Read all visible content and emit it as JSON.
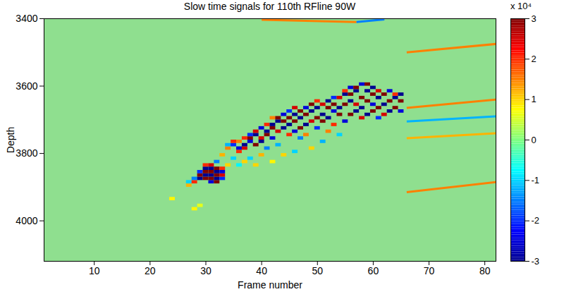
{
  "chart_data": {
    "type": "heatmap",
    "title": "Slow time signals for 110th RFline 90W",
    "x_label": "Frame number",
    "y_label": "Depth",
    "xlim": [
      1,
      82
    ],
    "xticks": [
      10,
      20,
      30,
      40,
      50,
      60,
      70,
      80
    ],
    "ylim": [
      3400,
      4120
    ],
    "yticks": [
      3400,
      3600,
      3800,
      4000
    ],
    "colorbar": {
      "label": "x 10⁴",
      "range": [
        -30000,
        30000
      ],
      "ticks": [
        {
          "value": -30000,
          "label": "-3"
        },
        {
          "value": -20000,
          "label": "-2"
        },
        {
          "value": -10000,
          "label": "-1"
        },
        {
          "value": 0,
          "label": "0"
        },
        {
          "value": 10000,
          "label": "1"
        },
        {
          "value": 20000,
          "label": "2"
        },
        {
          "value": 30000,
          "label": "3"
        }
      ]
    },
    "cell_width": 1,
    "cell_height": 10,
    "cells": [
      [
        24,
        3935,
        8000
      ],
      [
        27,
        3895,
        12000
      ],
      [
        27,
        3885,
        -10000
      ],
      [
        28,
        3885,
        20000
      ],
      [
        28,
        3875,
        -15000
      ],
      [
        28,
        3965,
        8000
      ],
      [
        29,
        3875,
        -30000
      ],
      [
        29,
        3865,
        30000
      ],
      [
        29,
        3855,
        -20000
      ],
      [
        29,
        3955,
        6000
      ],
      [
        30,
        3875,
        30000
      ],
      [
        30,
        3865,
        -30000
      ],
      [
        30,
        3855,
        30000
      ],
      [
        30,
        3845,
        -30000
      ],
      [
        30,
        3835,
        20000
      ],
      [
        31,
        3885,
        -25000
      ],
      [
        31,
        3875,
        30000
      ],
      [
        31,
        3865,
        -30000
      ],
      [
        31,
        3855,
        30000
      ],
      [
        31,
        3845,
        -30000
      ],
      [
        31,
        3835,
        25000
      ],
      [
        32,
        3885,
        30000
      ],
      [
        32,
        3875,
        -30000
      ],
      [
        32,
        3865,
        30000
      ],
      [
        32,
        3855,
        -30000
      ],
      [
        32,
        3845,
        30000
      ],
      [
        32,
        3825,
        -15000
      ],
      [
        33,
        3875,
        -20000
      ],
      [
        33,
        3865,
        25000
      ],
      [
        33,
        3855,
        -25000
      ],
      [
        33,
        3845,
        20000
      ],
      [
        33,
        3805,
        12000
      ],
      [
        34,
        3785,
        15000
      ],
      [
        34,
        3775,
        -12000
      ],
      [
        34,
        3835,
        10000
      ],
      [
        35,
        3775,
        -20000
      ],
      [
        35,
        3765,
        20000
      ],
      [
        35,
        3815,
        -10000
      ],
      [
        36,
        3795,
        20000
      ],
      [
        36,
        3785,
        -25000
      ],
      [
        36,
        3765,
        15000
      ],
      [
        36,
        3835,
        -8000
      ],
      [
        37,
        3785,
        25000
      ],
      [
        37,
        3775,
        -30000
      ],
      [
        37,
        3755,
        20000
      ],
      [
        37,
        3825,
        10000
      ],
      [
        38,
        3765,
        -25000
      ],
      [
        38,
        3755,
        30000
      ],
      [
        38,
        3745,
        -20000
      ],
      [
        38,
        3815,
        -10000
      ],
      [
        39,
        3775,
        30000
      ],
      [
        39,
        3745,
        -30000
      ],
      [
        39,
        3735,
        25000
      ],
      [
        39,
        3835,
        10000
      ],
      [
        40,
        3765,
        -30000
      ],
      [
        40,
        3755,
        25000
      ],
      [
        40,
        3725,
        -25000
      ],
      [
        40,
        3805,
        12000
      ],
      [
        41,
        3745,
        30000
      ],
      [
        41,
        3735,
        -30000
      ],
      [
        41,
        3715,
        20000
      ],
      [
        41,
        3785,
        -15000
      ],
      [
        42,
        3755,
        -25000
      ],
      [
        42,
        3725,
        30000
      ],
      [
        42,
        3715,
        -30000
      ],
      [
        42,
        3695,
        15000
      ],
      [
        42,
        3825,
        8000
      ],
      [
        43,
        3735,
        25000
      ],
      [
        43,
        3705,
        -30000
      ],
      [
        43,
        3695,
        30000
      ],
      [
        43,
        3775,
        -12000
      ],
      [
        44,
        3725,
        -30000
      ],
      [
        44,
        3705,
        30000
      ],
      [
        44,
        3685,
        -25000
      ],
      [
        44,
        3805,
        10000
      ],
      [
        45,
        3745,
        20000
      ],
      [
        45,
        3715,
        -30000
      ],
      [
        45,
        3695,
        30000
      ],
      [
        45,
        3675,
        -20000
      ],
      [
        46,
        3735,
        -25000
      ],
      [
        46,
        3705,
        30000
      ],
      [
        46,
        3685,
        -30000
      ],
      [
        46,
        3665,
        25000
      ],
      [
        46,
        3795,
        -10000
      ],
      [
        47,
        3725,
        30000
      ],
      [
        47,
        3695,
        -30000
      ],
      [
        47,
        3675,
        30000
      ],
      [
        47,
        3755,
        -15000
      ],
      [
        48,
        3715,
        -30000
      ],
      [
        48,
        3685,
        30000
      ],
      [
        48,
        3665,
        -25000
      ],
      [
        48,
        3745,
        15000
      ],
      [
        49,
        3705,
        25000
      ],
      [
        49,
        3675,
        -30000
      ],
      [
        49,
        3655,
        30000
      ],
      [
        49,
        3785,
        10000
      ],
      [
        50,
        3725,
        -20000
      ],
      [
        50,
        3695,
        30000
      ],
      [
        50,
        3665,
        -30000
      ],
      [
        50,
        3645,
        20000
      ],
      [
        51,
        3705,
        30000
      ],
      [
        51,
        3685,
        -30000
      ],
      [
        51,
        3655,
        25000
      ],
      [
        51,
        3765,
        -12000
      ],
      [
        52,
        3695,
        -30000
      ],
      [
        52,
        3665,
        30000
      ],
      [
        52,
        3645,
        -30000
      ],
      [
        52,
        3735,
        15000
      ],
      [
        53,
        3715,
        20000
      ],
      [
        53,
        3675,
        -25000
      ],
      [
        53,
        3655,
        30000
      ],
      [
        53,
        3635,
        -20000
      ],
      [
        54,
        3685,
        30000
      ],
      [
        54,
        3665,
        -30000
      ],
      [
        54,
        3635,
        25000
      ],
      [
        54,
        3745,
        -10000
      ],
      [
        55,
        3705,
        -25000
      ],
      [
        55,
        3655,
        30000
      ],
      [
        55,
        3625,
        -30000
      ],
      [
        55,
        3615,
        20000
      ],
      [
        56,
        3685,
        30000
      ],
      [
        56,
        3645,
        -30000
      ],
      [
        56,
        3625,
        30000
      ],
      [
        56,
        3605,
        -25000
      ],
      [
        57,
        3675,
        -30000
      ],
      [
        57,
        3655,
        25000
      ],
      [
        57,
        3615,
        -30000
      ],
      [
        57,
        3605,
        30000
      ],
      [
        58,
        3695,
        25000
      ],
      [
        58,
        3665,
        -30000
      ],
      [
        58,
        3635,
        30000
      ],
      [
        58,
        3595,
        -25000
      ],
      [
        59,
        3685,
        -30000
      ],
      [
        59,
        3645,
        30000
      ],
      [
        59,
        3615,
        -30000
      ],
      [
        59,
        3595,
        30000
      ],
      [
        60,
        3675,
        30000
      ],
      [
        60,
        3655,
        -25000
      ],
      [
        60,
        3625,
        30000
      ],
      [
        60,
        3605,
        -30000
      ],
      [
        61,
        3695,
        -20000
      ],
      [
        61,
        3665,
        30000
      ],
      [
        61,
        3635,
        -30000
      ],
      [
        61,
        3615,
        25000
      ],
      [
        62,
        3685,
        25000
      ],
      [
        62,
        3655,
        -30000
      ],
      [
        62,
        3625,
        30000
      ],
      [
        63,
        3675,
        -30000
      ],
      [
        63,
        3645,
        30000
      ],
      [
        63,
        3615,
        -25000
      ],
      [
        64,
        3665,
        30000
      ],
      [
        64,
        3635,
        -30000
      ],
      [
        64,
        3625,
        20000
      ],
      [
        65,
        3675,
        -25000
      ],
      [
        65,
        3645,
        30000
      ],
      [
        65,
        3625,
        -30000
      ]
    ],
    "streaks": [
      {
        "frames": [
          66,
          82
        ],
        "depth": [
          3500,
          3475
        ],
        "value": 15000
      },
      {
        "frames": [
          66,
          82
        ],
        "depth": [
          3665,
          3640
        ],
        "value": 15000
      },
      {
        "frames": [
          66,
          82
        ],
        "depth": [
          3705,
          3690
        ],
        "value": -12000
      },
      {
        "frames": [
          66,
          82
        ],
        "depth": [
          3755,
          3740
        ],
        "value": 12000
      },
      {
        "frames": [
          66,
          82
        ],
        "depth": [
          3915,
          3885
        ],
        "value": 15000
      },
      {
        "frames": [
          40,
          57
        ],
        "depth": [
          3403,
          3410
        ],
        "value": 15000
      },
      {
        "frames": [
          57,
          62
        ],
        "depth": [
          3410,
          3402
        ],
        "value": -15000
      }
    ]
  }
}
